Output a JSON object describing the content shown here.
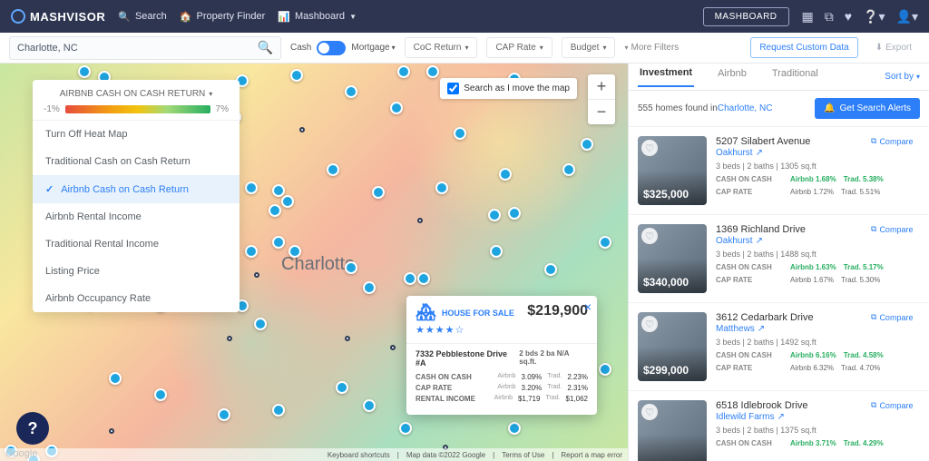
{
  "nav": {
    "brand": "MASHVISOR",
    "search": "Search",
    "finder": "Property Finder",
    "mashboard": "Mashboard",
    "mashboard_btn": "MASHBOARD"
  },
  "filters": {
    "location": "Charlotte, NC",
    "cash": "Cash",
    "mortgage": "Mortgage",
    "coc": "CoC Return",
    "caprate": "CAP Rate",
    "budget": "Budget",
    "more": "More Filters",
    "request": "Request Custom Data",
    "export": "Export"
  },
  "heatmap": {
    "title": "AIRBNB CASH ON CASH RETURN",
    "low": "-1%",
    "high": "7%",
    "options": [
      {
        "label": "Turn Off Heat Map",
        "active": false
      },
      {
        "label": "Traditional Cash on Cash Return",
        "active": false
      },
      {
        "label": "Airbnb Cash on Cash Return",
        "active": true
      },
      {
        "label": "Airbnb Rental Income",
        "active": false
      },
      {
        "label": "Traditional Rental Income",
        "active": false
      },
      {
        "label": "Listing Price",
        "active": false
      },
      {
        "label": "Airbnb Occupancy Rate",
        "active": false
      }
    ]
  },
  "map": {
    "city": "Charlotte",
    "search_as_move": "Search as I move the map",
    "attrib1": "Keyboard shortcuts",
    "attrib2": "Map data ©2022 Google",
    "attrib3": "Terms of Use",
    "attrib4": "Report a map error",
    "google": "Google"
  },
  "popup": {
    "badge": "HOUSE FOR SALE",
    "stars": "★★★★☆",
    "price": "$219,900",
    "address": "7332 Pebblestone Drive #A",
    "bds": "2 bds",
    "ba": "2 ba",
    "sqft": "N/A sq.ft.",
    "rows": [
      {
        "label": "CASH ON CASH",
        "sub1": "Airbnb",
        "val1": "3.09%",
        "sub2": "Trad.",
        "val2": "2.23%"
      },
      {
        "label": "CAP RATE",
        "sub1": "Airbnb",
        "val1": "3.20%",
        "sub2": "Trad.",
        "val2": "2.31%"
      },
      {
        "label": "RENTAL INCOME",
        "sub1": "Airbnb",
        "val1": "$1,719",
        "sub2": "Trad.",
        "val2": "$1,062"
      }
    ]
  },
  "tabs": {
    "t1": "Investment",
    "t2": "Airbnb",
    "t3": "Traditional",
    "sort": "Sort by"
  },
  "results": {
    "count": "555 homes found in ",
    "location": "Charlotte, NC",
    "alerts": "Get Search Alerts"
  },
  "listings": [
    {
      "price": "$325,000",
      "addr": "5207 Silabert Avenue",
      "area": "Oakhurst",
      "specs": "3 beds  |  2 baths  |  1305 sq.ft",
      "coc_a": "Airbnb 1.68%",
      "coc_t": "Trad. 5.38%",
      "cap_a": "Airbnb 1.72%",
      "cap_t": "Trad. 5.51%",
      "cap_gray": true
    },
    {
      "price": "$340,000",
      "addr": "1369 Richland Drive",
      "area": "Oakhurst",
      "specs": "3 beds  |  2 baths  |  1488 sq.ft",
      "coc_a": "Airbnb 1.63%",
      "coc_t": "Trad. 5.17%",
      "cap_a": "Airbnb 1.67%",
      "cap_t": "Trad. 5.30%",
      "cap_gray": true
    },
    {
      "price": "$299,000",
      "addr": "3612 Cedarbark Drive",
      "area": "Matthews",
      "specs": "3 beds  |  2 baths  |  1492 sq.ft",
      "coc_a": "Airbnb 6.16%",
      "coc_t": "Trad. 4.58%",
      "cap_a": "Airbnb 6.32%",
      "cap_t": "Trad. 4.70%",
      "cap_gray": true
    },
    {
      "price": "",
      "addr": "6518 Idlebrook Drive",
      "area": "Idlewild Farms",
      "specs": "3 beds  |  2 baths  |  1375 sq.ft",
      "coc_a": "Airbnb 3.71%",
      "coc_t": "Trad. 4.29%",
      "cap_a": "",
      "cap_t": "",
      "cap_gray": false
    }
  ],
  "labels": {
    "compare": "Compare",
    "coc": "CASH ON CASH",
    "cap": "CAP RATE"
  }
}
